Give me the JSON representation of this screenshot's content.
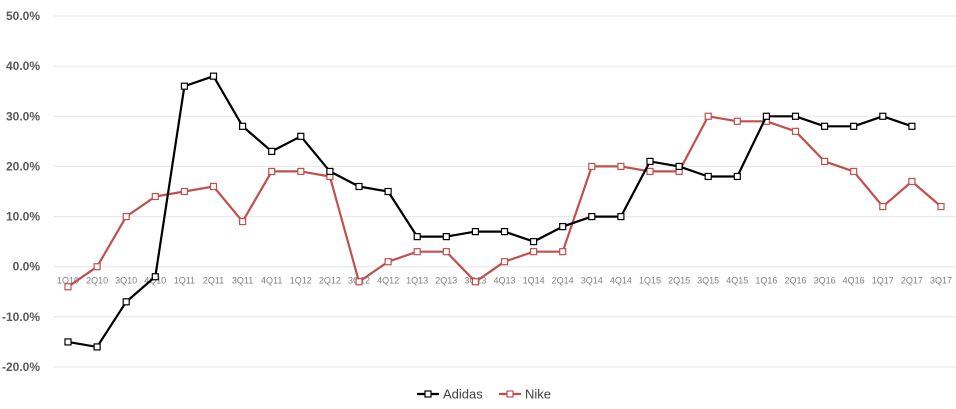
{
  "chart_data": {
    "type": "line",
    "title": "",
    "xlabel": "",
    "ylabel": "",
    "ylim": [
      -0.2,
      0.5
    ],
    "yticks": [
      "-20.0%",
      "-10.0%",
      "0.0%",
      "10.0%",
      "20.0%",
      "30.0%",
      "40.0%",
      "50.0%"
    ],
    "ytick_values": [
      -0.2,
      -0.1,
      0.0,
      0.1,
      0.2,
      0.3,
      0.4,
      0.5
    ],
    "grid": true,
    "legend": "bottom",
    "categories": [
      "1Q10",
      "2Q10",
      "3Q10",
      "4Q10",
      "1Q11",
      "2Q11",
      "3Q11",
      "4Q11",
      "1Q12",
      "2Q12",
      "3Q12",
      "4Q12",
      "1Q13",
      "2Q13",
      "3Q13",
      "4Q13",
      "1Q14",
      "2Q14",
      "3Q14",
      "4Q14",
      "1Q15",
      "2Q15",
      "3Q15",
      "4Q15",
      "1Q16",
      "2Q16",
      "3Q16",
      "4Q16",
      "1Q17",
      "2Q17",
      "3Q17"
    ],
    "series": [
      {
        "name": "Adidas",
        "color": "#000000",
        "values": [
          -0.15,
          -0.16,
          -0.07,
          -0.02,
          0.36,
          0.38,
          0.28,
          0.23,
          0.26,
          0.19,
          0.16,
          0.15,
          0.06,
          0.06,
          0.07,
          0.07,
          0.05,
          0.08,
          0.1,
          0.1,
          0.21,
          0.2,
          0.18,
          0.18,
          0.3,
          0.3,
          0.28,
          0.28,
          0.3,
          0.28,
          null
        ]
      },
      {
        "name": "Nike",
        "color": "#c0504d",
        "values": [
          -0.04,
          0.0,
          0.1,
          0.14,
          0.15,
          0.16,
          0.09,
          0.19,
          0.19,
          0.18,
          -0.03,
          0.01,
          0.03,
          0.03,
          -0.03,
          0.01,
          0.03,
          0.03,
          0.2,
          0.2,
          0.19,
          0.19,
          0.3,
          0.29,
          0.29,
          0.27,
          0.21,
          0.19,
          0.12,
          0.17,
          0.12
        ]
      }
    ]
  }
}
